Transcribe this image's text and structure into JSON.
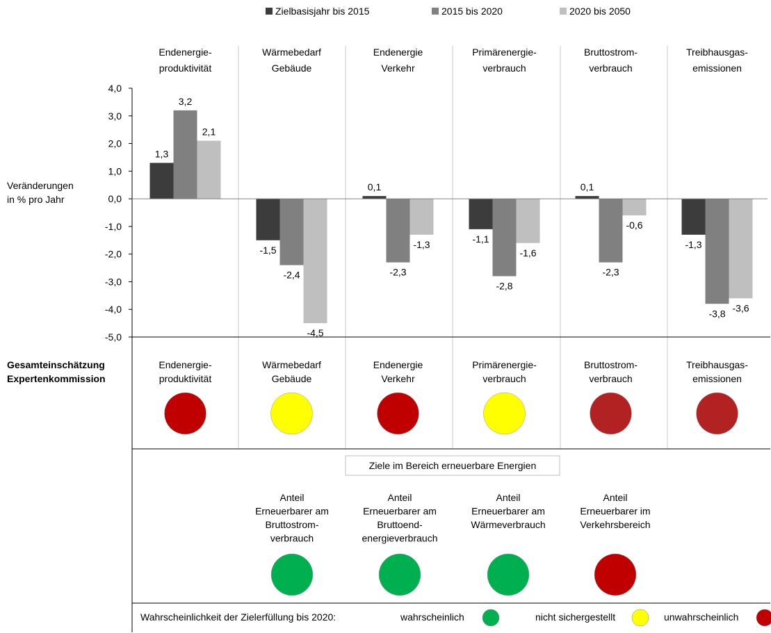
{
  "legend": {
    "items": [
      {
        "label": "Zielbasisjahr bis 2015",
        "color": "#3c3c3c"
      },
      {
        "label": "2015 bis 2020",
        "color": "#808080"
      },
      {
        "label": "2020 bis 2050",
        "color": "#bfbfbf"
      }
    ]
  },
  "chart_data": {
    "type": "bar",
    "ylabel": [
      "Veränderungen",
      "in % pro Jahr"
    ],
    "ylim": [
      -5,
      4
    ],
    "yticks": [
      "4,0",
      "3,0",
      "2,0",
      "1,0",
      "0,0",
      "-1,0",
      "-2,0",
      "-3,0",
      "-4,0",
      "-5,0"
    ],
    "categories": [
      [
        "Endenergie-",
        "produktivität"
      ],
      [
        "Wärmebedarf",
        "Gebäude"
      ],
      [
        "Endenergie",
        "Verkehr"
      ],
      [
        "Primärenergie-",
        "verbrauch"
      ],
      [
        "Bruttostrom-",
        "verbrauch"
      ],
      [
        "Treibhausgas-",
        "emissionen"
      ]
    ],
    "series": [
      {
        "name": "Zielbasisjahr bis 2015",
        "values": [
          1.3,
          -1.5,
          0.1,
          -1.1,
          0.1,
          -1.3
        ],
        "labels": [
          "1,3",
          "-1,5",
          "0,1",
          "-1,1",
          "0,1",
          "-1,3"
        ]
      },
      {
        "name": "2015 bis 2020",
        "values": [
          3.2,
          -2.4,
          -2.3,
          -2.8,
          -2.3,
          -3.8
        ],
        "labels": [
          "3,2",
          "-2,4",
          "-2,3",
          "-2,8",
          "-2,3",
          "-3,8"
        ]
      },
      {
        "name": "2020 bis 2050",
        "values": [
          2.1,
          -4.5,
          -1.3,
          -1.6,
          -0.6,
          -3.6
        ],
        "labels": [
          "2,1",
          "-4,5",
          "-1,3",
          "-1,6",
          "-0,6",
          "-3,6"
        ]
      }
    ],
    "legend_position": "top",
    "grid": false
  },
  "assessment": {
    "title": [
      "Gesamteinschätzung",
      "Expertenkommission"
    ],
    "items": [
      {
        "label": [
          "Endenergie-",
          "produktivität"
        ],
        "color": "#c00000"
      },
      {
        "label": [
          "Wärmebedarf",
          "Gebäude"
        ],
        "color": "#ffff00"
      },
      {
        "label": [
          "Endenergie",
          "Verkehr"
        ],
        "color": "#c00000"
      },
      {
        "label": [
          "Primärenergie-",
          "verbrauch"
        ],
        "color": "#ffff00"
      },
      {
        "label": [
          "Bruttostrom-",
          "verbrauch"
        ],
        "color": "#b22222"
      },
      {
        "label": [
          "Treibhausgas-",
          "emissionen"
        ],
        "color": "#b22222"
      }
    ]
  },
  "renewables": {
    "title": "Ziele im Bereich erneuerbare Energien",
    "items": [
      {
        "label": [
          "Anteil",
          "Erneuerbarer am",
          "Bruttostrom-",
          "verbrauch"
        ],
        "color": "#00b050"
      },
      {
        "label": [
          "Anteil",
          "Erneuerbarer am",
          "Bruttoend-",
          "energieverbrauch"
        ],
        "color": "#00b050"
      },
      {
        "label": [
          "Anteil",
          "Erneuerbarer am",
          "Wärmeverbrauch"
        ],
        "color": "#00b050"
      },
      {
        "label": [
          "Anteil",
          "Erneuerbarer im",
          "Verkehrsbereich"
        ],
        "color": "#c00000"
      }
    ]
  },
  "footer": {
    "title": "Wahrscheinlichkeit der Zielerfüllung bis 2020:",
    "items": [
      {
        "label": "wahrscheinlich",
        "color": "#00b050"
      },
      {
        "label": "nicht sichergestellt",
        "color": "#ffff00"
      },
      {
        "label": "unwahrscheinlich",
        "color": "#c00000"
      }
    ]
  }
}
